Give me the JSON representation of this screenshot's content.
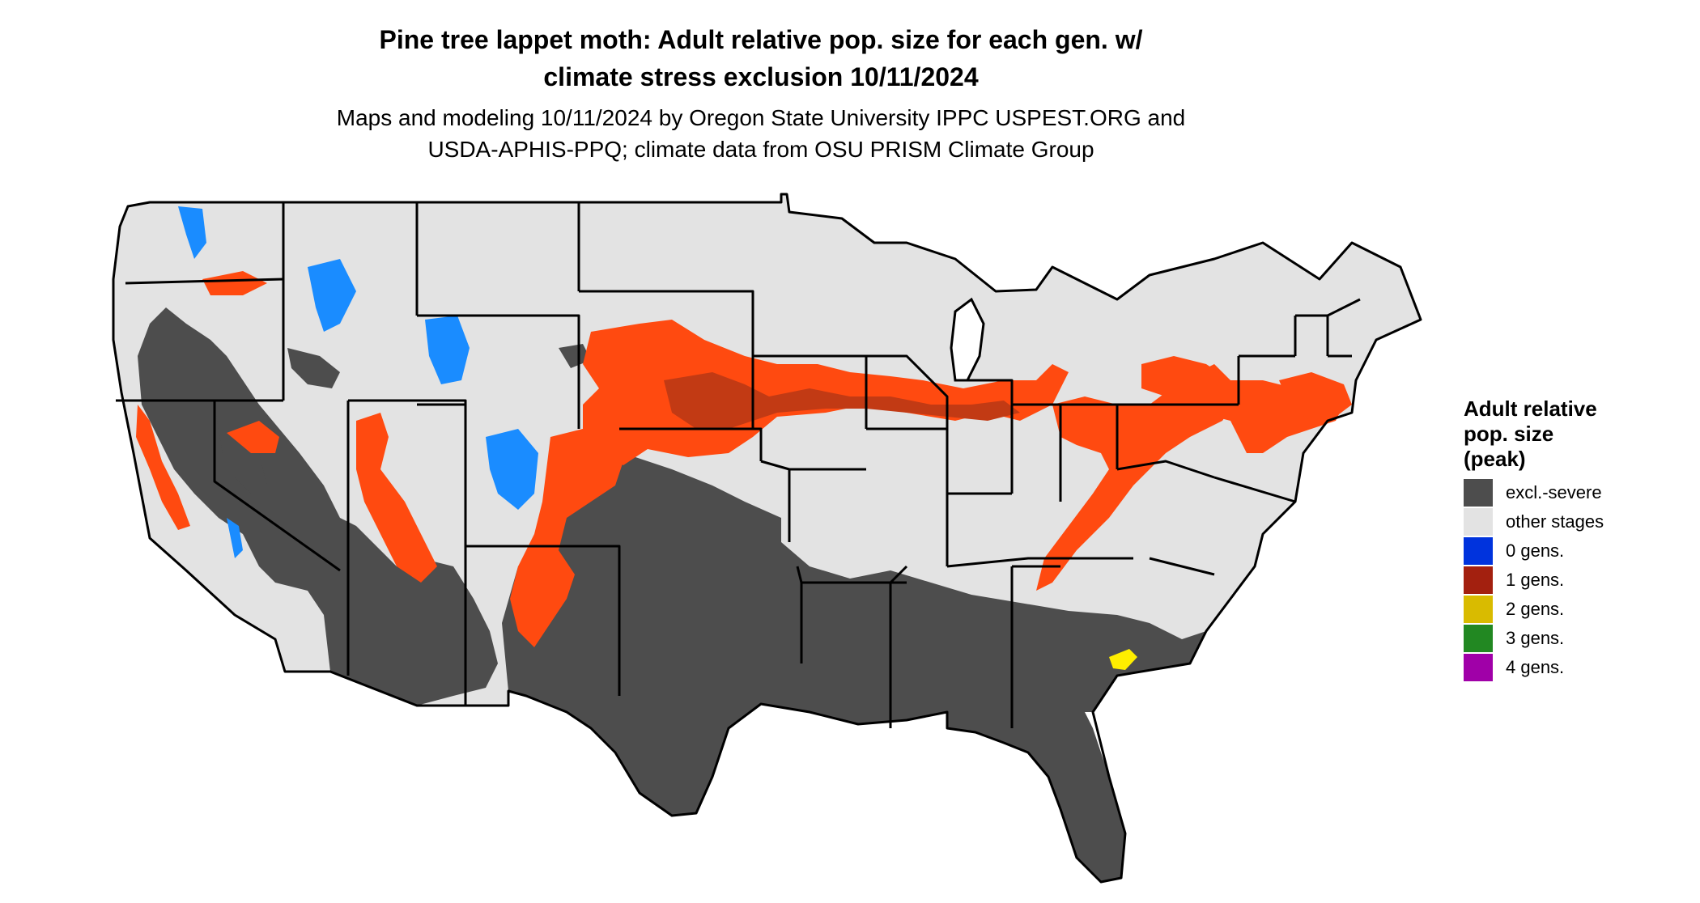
{
  "title": {
    "line1": "Pine tree lappet moth: Adult relative pop. size for each gen. w/",
    "line2": "climate stress exclusion 10/11/2024"
  },
  "subtitle": {
    "line1": "Maps and modeling 10/11/2024 by Oregon State University IPPC USPEST.ORG and",
    "line2": "USDA-APHIS-PPQ; climate data from OSU PRISM Climate Group"
  },
  "legend": {
    "title_line1": "Adult relative",
    "title_line2": "pop. size",
    "title_line3": "(peak)",
    "items": [
      {
        "label": "excl.-severe",
        "color": "#4d4d4d"
      },
      {
        "label": "other stages",
        "color": "#e3e3e3"
      },
      {
        "label": "0 gens.",
        "color": "#0033dd"
      },
      {
        "label": "1 gens.",
        "color": "#a3200f"
      },
      {
        "label": "2 gens.",
        "color": "#d9bb00"
      },
      {
        "label": "3 gens.",
        "color": "#228822"
      },
      {
        "label": "4 gens.",
        "color": "#a000a8"
      }
    ]
  },
  "map_colors": {
    "other_stages": "#e3e3e3",
    "excluded": "#4d4d4d",
    "one_gen_bright": "#ff4a10",
    "one_gen_dark": "#c23a14",
    "zero_gen": "#1a8cff",
    "two_gen": "#ffee00",
    "border": "#000000"
  }
}
